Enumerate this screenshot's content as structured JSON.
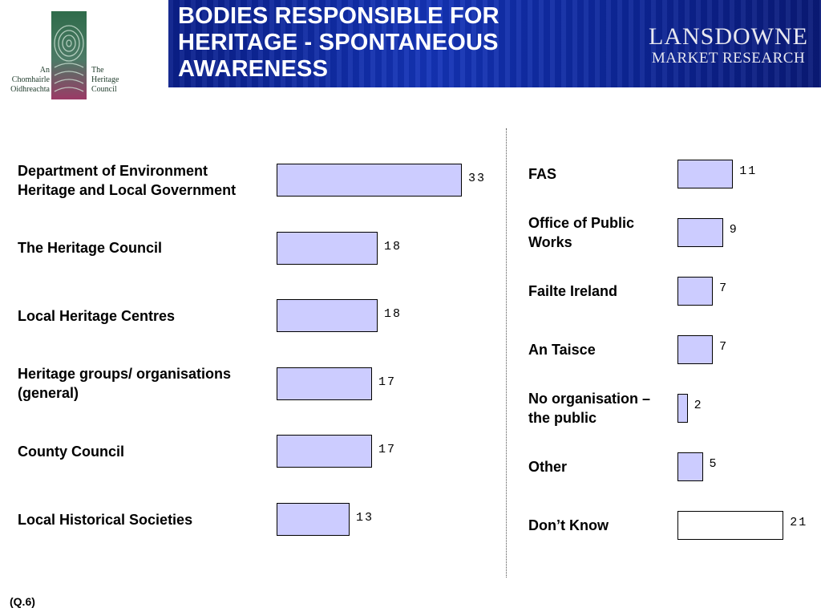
{
  "header": {
    "title": "BODIES RESPONSIBLE FOR HERITAGE - SPONTANEOUS AWARENESS",
    "brand_line1": "LANSDOWNE",
    "brand_line2": "MARKET RESEARCH"
  },
  "logo": {
    "left_text": "An\nChomhairle\nOidhreachta",
    "right_text": "The\nHeritage\nCouncil"
  },
  "footnote": "(Q.6)",
  "colors": {
    "bar_fill": "#ccccff",
    "dont_know_fill": "#ffffff",
    "banner": "#1434b8"
  },
  "chart_data": [
    {
      "type": "bar",
      "orientation": "horizontal",
      "title": "",
      "xlabel": "",
      "ylabel": "",
      "categories": [
        "Department of Environment Heritage and Local Government",
        "The Heritage Council",
        "Local Heritage Centres",
        "Heritage groups/ organisations (general)",
        "County Council",
        "Local Historical Societies"
      ],
      "values": [
        33,
        18,
        18,
        17,
        17,
        13
      ],
      "grid": false
    },
    {
      "type": "bar",
      "orientation": "horizontal",
      "title": "",
      "xlabel": "",
      "ylabel": "",
      "categories": [
        "FAS",
        "Office of Public Works",
        "Failte Ireland",
        "An Taisce",
        "No organisation – the public",
        "Other",
        "Don’t Know"
      ],
      "values": [
        11,
        9,
        7,
        7,
        2,
        5,
        21
      ],
      "grid": false
    }
  ]
}
